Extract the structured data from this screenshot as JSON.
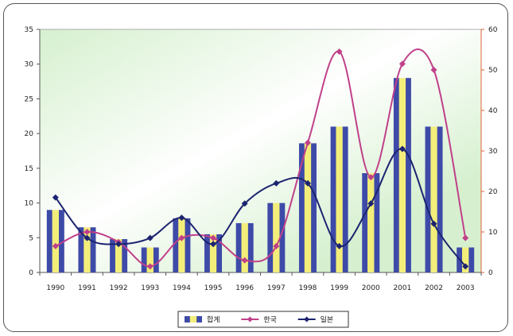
{
  "chart_data": {
    "type": "bar+line",
    "categories": [
      "1990",
      "1991",
      "1992",
      "1993",
      "1994",
      "1995",
      "1996",
      "1997",
      "1998",
      "1999",
      "2000",
      "2001",
      "2002",
      "2003"
    ],
    "left_axis": {
      "min": 0,
      "max": 35,
      "ticks": [
        0,
        5,
        10,
        15,
        20,
        25,
        30,
        35
      ]
    },
    "right_axis": {
      "min": 0,
      "max": 60,
      "ticks": [
        0,
        10,
        20,
        30,
        40,
        50,
        60
      ]
    },
    "series": [
      {
        "name": "합계",
        "kind": "bar",
        "axis": "left",
        "values": [
          9,
          6.5,
          4.8,
          3.6,
          7.8,
          5.5,
          7.1,
          10,
          18.6,
          21,
          14.3,
          28,
          21,
          3.6
        ]
      },
      {
        "name": "한국",
        "kind": "line",
        "axis": "right",
        "color": "#c0408a",
        "marker": "diamond",
        "values": [
          6.5,
          10,
          7.5,
          1.5,
          8.5,
          8.5,
          3,
          6.5,
          32,
          54.5,
          23.5,
          51.5,
          50,
          8.5
        ]
      },
      {
        "name": "일본",
        "kind": "line",
        "axis": "right",
        "color": "#1c2470",
        "marker": "diamond",
        "values": [
          18.5,
          8.5,
          7,
          8.5,
          13.5,
          7,
          17,
          22,
          22,
          6.5,
          17,
          30.5,
          12,
          1.5
        ]
      }
    ],
    "grid": false,
    "legend_position": "bottom",
    "colors": {
      "bar_outer": "#3e4aa8",
      "bar_inner": "#f3ee7a",
      "plot_bg_left": "#ffffff",
      "plot_bg_right": "#d6f0cf",
      "right_axis": "#e0603a"
    }
  }
}
